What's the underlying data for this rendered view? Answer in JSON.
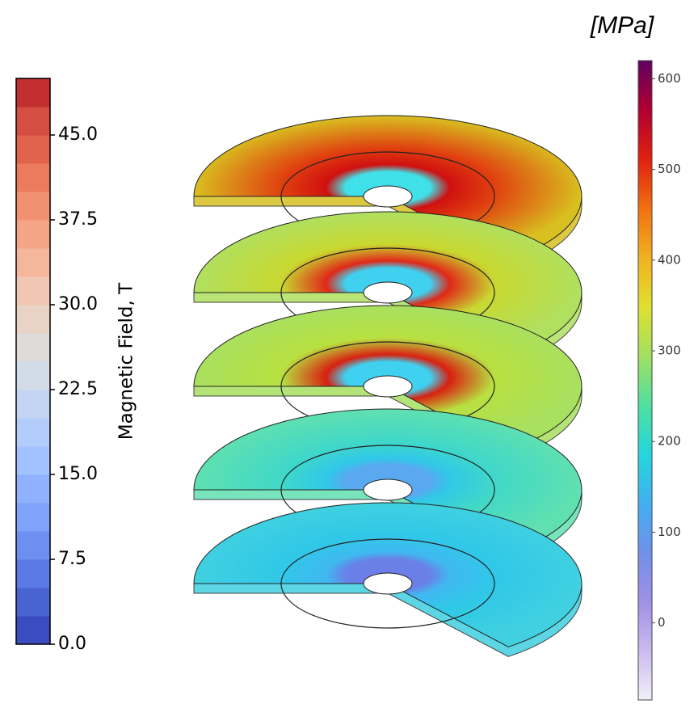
{
  "field_colorbar": {
    "label": "Magnetic Field, T",
    "lim": [
      0,
      50
    ],
    "ticks": [
      {
        "value": 0,
        "label": "0.0"
      },
      7.5,
      {
        "value": 15,
        "label": "15.0"
      },
      22.5,
      {
        "value": 30,
        "label": "30.0"
      },
      37.5,
      {
        "value": 45,
        "label": "45.0"
      }
    ],
    "colors": [
      "#3b4cc0",
      "#4a63d3",
      "#5b7ae5",
      "#6c8ff1",
      "#7ea3f9",
      "#90b2fe",
      "#a2c1ff",
      "#b3cdfb",
      "#c4d5f3",
      "#d2dbe8",
      "#dfdbd9",
      "#e8d3c6",
      "#f0c7b2",
      "#f4b79c",
      "#f5a586",
      "#f29072",
      "#ec7b5e",
      "#e1634b",
      "#d44e41",
      "#c32e31"
    ]
  },
  "stress_colorbar": {
    "unit": "[MPa]",
    "lim": [
      -85,
      620
    ],
    "ticks": [
      0,
      100,
      200,
      300,
      400,
      500,
      600
    ],
    "colors": [
      "#f2f0f9",
      "#cbbaef",
      "#a090e6",
      "#7090ea",
      "#40b0f0",
      "#25d6dc",
      "#50e0a0",
      "#a2e060",
      "#e0e030",
      "#f2b020",
      "#f07010",
      "#e02010",
      "#b00030",
      "#600060"
    ]
  }
}
